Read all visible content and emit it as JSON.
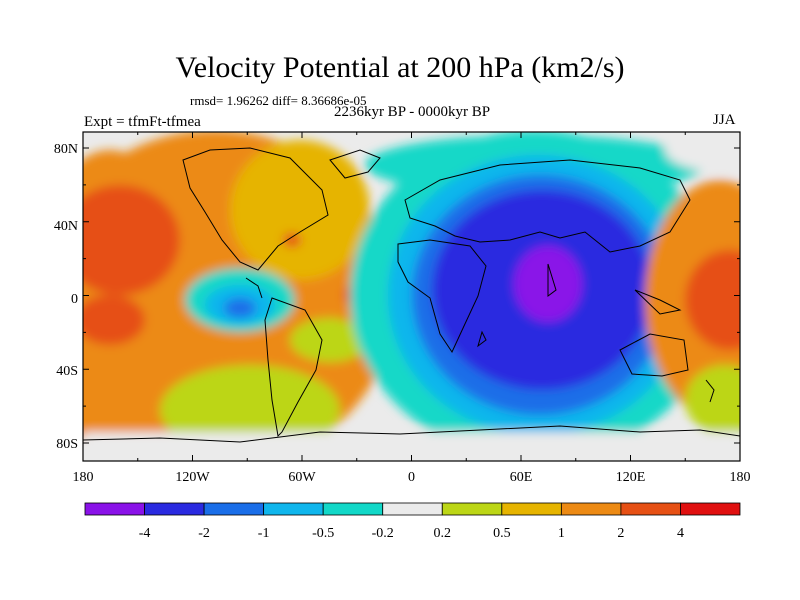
{
  "title": "Velocity Potential at 200 hPa (km2/s)",
  "stats": "rmsd= 1.96262 diff= 8.36686e-05",
  "period": "2236kyr BP - 0000kyr BP",
  "experiment": "Expt = tfmFt-tfmea",
  "season": "JJA",
  "axes": {
    "y_labels": [
      "80N",
      "40N",
      "0",
      "40S",
      "80S"
    ],
    "x_labels": [
      "180",
      "120W",
      "60W",
      "0",
      "60E",
      "120E",
      "180"
    ]
  },
  "colorbar": {
    "labels": [
      "-4",
      "-2",
      "-1",
      "-0.5",
      "-0.2",
      "0.2",
      "0.5",
      "1",
      "2",
      "4"
    ],
    "colors": [
      "#8a12e8",
      "#2a2ae0",
      "#1a6ee8",
      "#10b6ec",
      "#12d8c8",
      "#ebebeb",
      "#bcd616",
      "#e6b400",
      "#ec8a14",
      "#e65014",
      "#e01010"
    ]
  }
}
